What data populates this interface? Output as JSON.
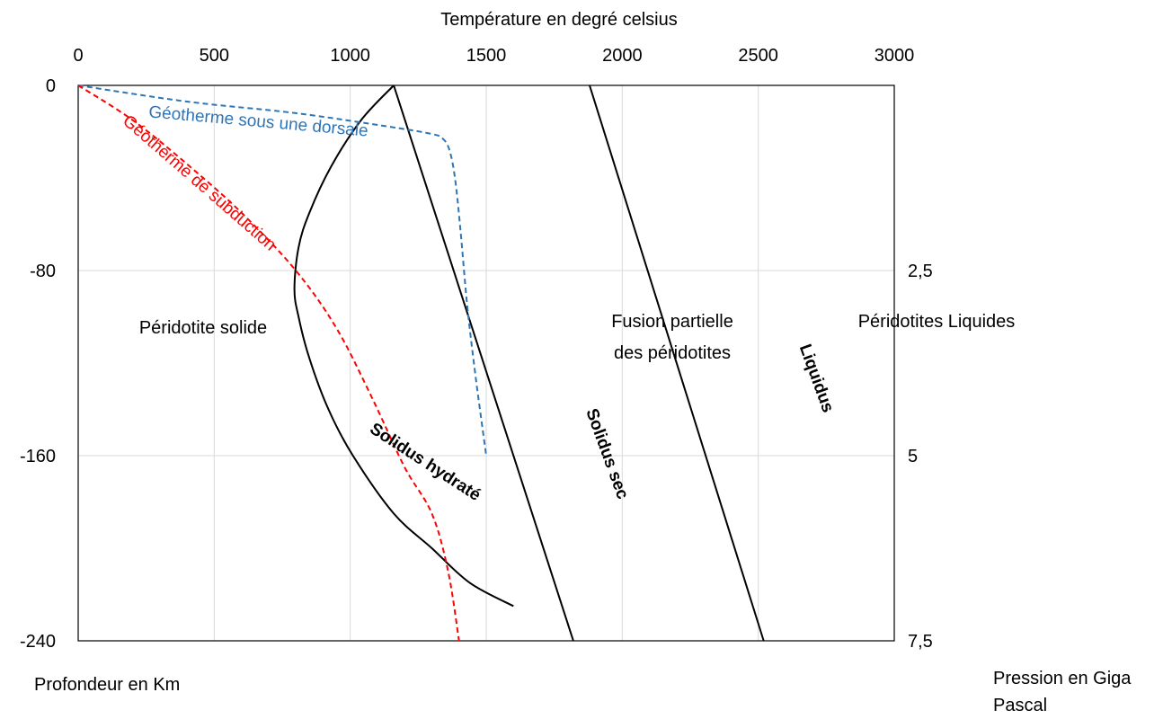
{
  "chart_data": {
    "type": "line",
    "top_axis": {
      "title": "Température en degré celsius",
      "range": [
        0,
        3000
      ],
      "ticks": [
        {
          "value": 0,
          "label": "0"
        },
        {
          "value": 500,
          "label": "500"
        },
        {
          "value": 1000,
          "label": "1000"
        },
        {
          "value": 1500,
          "label": "1500"
        },
        {
          "value": 2000,
          "label": "2000"
        },
        {
          "value": 2500,
          "label": "2500"
        },
        {
          "value": 3000,
          "label": "3000"
        }
      ]
    },
    "left_axis": {
      "title": "Profondeur en Km",
      "range": [
        -240,
        0
      ],
      "ticks": [
        {
          "value": 0,
          "label": "0"
        },
        {
          "value": -80,
          "label": "-80"
        },
        {
          "value": -160,
          "label": "-160"
        },
        {
          "value": -240,
          "label": "-240"
        }
      ]
    },
    "right_axis": {
      "title_line1": "Pression en Giga",
      "title_line2": "Pascal",
      "ticks": [
        {
          "depth": -80,
          "label": "2,5"
        },
        {
          "depth": -160,
          "label": "5"
        },
        {
          "depth": -240,
          "label": "7,5"
        }
      ]
    },
    "grid": true,
    "series": [
      {
        "name": "Solidus sec",
        "color": "#000000",
        "dash": "solid",
        "points": [
          [
            1160,
            0
          ],
          [
            1820,
            -240
          ]
        ]
      },
      {
        "name": "Liquidus",
        "color": "#000000",
        "dash": "solid",
        "points": [
          [
            1880,
            0
          ],
          [
            2520,
            -240
          ]
        ]
      },
      {
        "name": "Solidus hydraté",
        "color": "#000000",
        "dash": "solid",
        "points": [
          [
            1160,
            0
          ],
          [
            1040,
            -15
          ],
          [
            930,
            -35
          ],
          [
            850,
            -55
          ],
          [
            810,
            -70
          ],
          [
            795,
            -88
          ],
          [
            810,
            -100
          ],
          [
            850,
            -118
          ],
          [
            920,
            -140
          ],
          [
            1010,
            -160
          ],
          [
            1160,
            -185
          ],
          [
            1300,
            -200
          ],
          [
            1440,
            -215
          ],
          [
            1600,
            -225
          ]
        ]
      },
      {
        "name": "Géotherme sous une dorsale",
        "color": "#2E75B6",
        "dash": "dashed",
        "points": [
          [
            0,
            0
          ],
          [
            400,
            -7
          ],
          [
            800,
            -12
          ],
          [
            1150,
            -18
          ],
          [
            1300,
            -21
          ],
          [
            1340,
            -23
          ],
          [
            1365,
            -28
          ],
          [
            1385,
            -40
          ],
          [
            1405,
            -62
          ],
          [
            1430,
            -95
          ],
          [
            1460,
            -125
          ],
          [
            1500,
            -160
          ]
        ]
      },
      {
        "name": "Géotherme de subduction",
        "color": "#FF0000",
        "dash": "dashed",
        "points": [
          [
            0,
            0
          ],
          [
            200,
            -15
          ],
          [
            400,
            -34
          ],
          [
            600,
            -55
          ],
          [
            800,
            -80
          ],
          [
            950,
            -105
          ],
          [
            1080,
            -135
          ],
          [
            1200,
            -165
          ],
          [
            1300,
            -185
          ],
          [
            1360,
            -210
          ],
          [
            1400,
            -240
          ]
        ]
      }
    ],
    "region_labels": [
      {
        "text": "Péridotite solide"
      },
      {
        "text_line1": "Fusion partielle",
        "text_line2": "des péridotites"
      },
      {
        "text": "Péridotites Liquides"
      }
    ],
    "curve_labels": [
      {
        "text": "Géotherme sous une dorsale",
        "color": "#2E75B6"
      },
      {
        "text": "Géotherme de subduction",
        "color": "#FF0000"
      },
      {
        "text": "Solidus hydraté",
        "color": "#000000"
      },
      {
        "text": "Solidus sec",
        "color": "#000000"
      },
      {
        "text": "Liquidus",
        "color": "#000000"
      }
    ]
  }
}
